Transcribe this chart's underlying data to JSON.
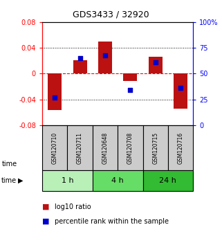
{
  "title": "GDS3433 / 32920",
  "samples": [
    "GSM120710",
    "GSM120711",
    "GSM120648",
    "GSM120708",
    "GSM120715",
    "GSM120716"
  ],
  "log10_ratio": [
    -0.057,
    0.021,
    0.05,
    -0.012,
    0.026,
    -0.054
  ],
  "percentile_rank": [
    27,
    65,
    68,
    34,
    61,
    36
  ],
  "time_groups": [
    {
      "label": "1 h",
      "start": 0,
      "end": 2,
      "color": "#b8f0b8"
    },
    {
      "label": "4 h",
      "start": 2,
      "end": 4,
      "color": "#66dd66"
    },
    {
      "label": "24 h",
      "start": 4,
      "end": 6,
      "color": "#33bb33"
    }
  ],
  "bar_color": "#bb1111",
  "dot_color": "#0000cc",
  "ylim_left": [
    -0.08,
    0.08
  ],
  "ylim_right": [
    0,
    100
  ],
  "left_ticks": [
    -0.08,
    -0.04,
    0,
    0.04,
    0.08
  ],
  "right_ticks": [
    0,
    25,
    50,
    75,
    100
  ],
  "background_color": "#ffffff",
  "sample_box_color": "#cccccc",
  "bar_width": 0.55
}
